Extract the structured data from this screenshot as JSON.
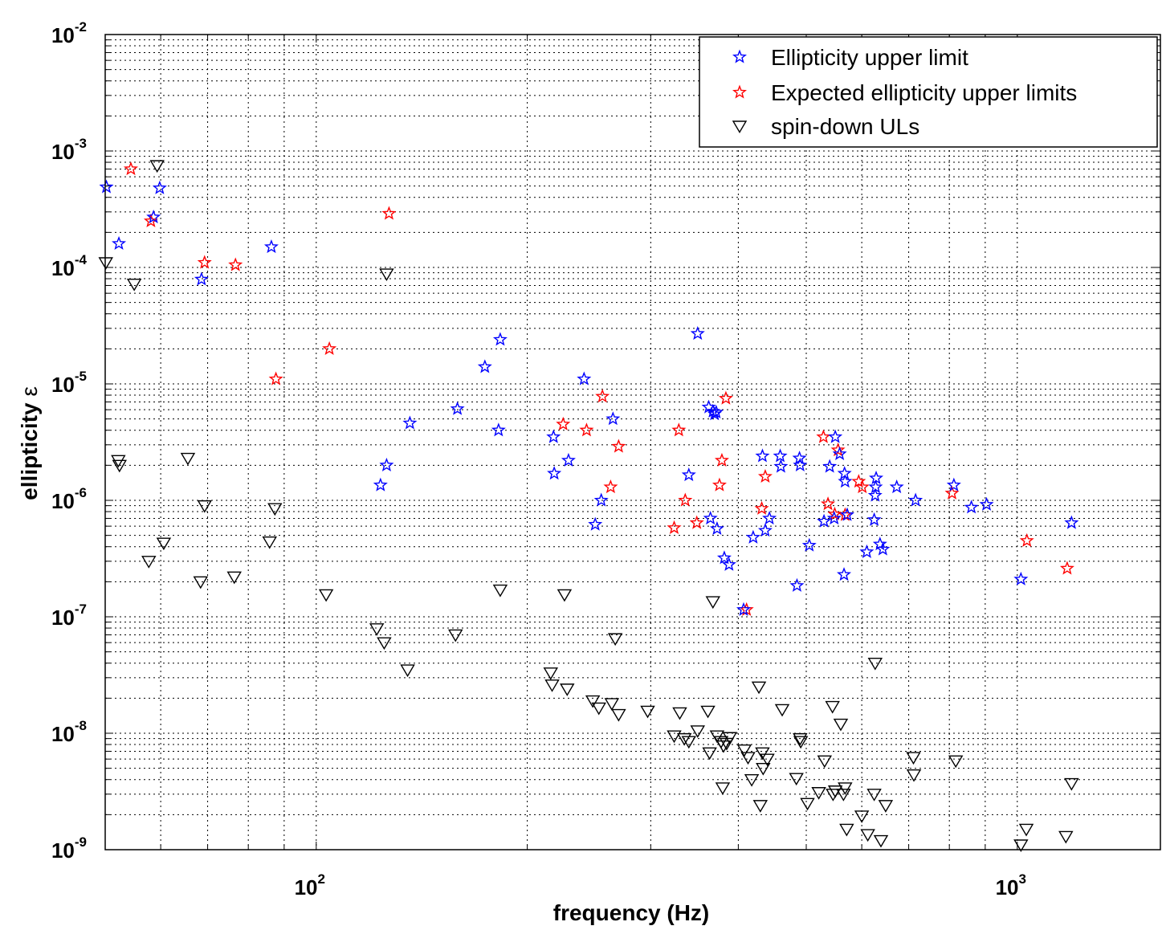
{
  "chart_data": {
    "type": "scatter",
    "xlabel": "frequency (Hz)",
    "ylabel": "ellipticity",
    "ylabel_symbol": "ε",
    "xscale": "log",
    "yscale": "log",
    "xlim": [
      50,
      1600
    ],
    "ylim": [
      1e-09,
      0.01
    ],
    "grid": true,
    "legend_position": "top-right",
    "x_ticks": [
      {
        "value": 100,
        "base": "10",
        "exp": "2"
      },
      {
        "value": 1000,
        "base": "10",
        "exp": "3"
      }
    ],
    "y_ticks": [
      {
        "value": 0.01,
        "base": "10",
        "exp": "-2"
      },
      {
        "value": 0.001,
        "base": "10",
        "exp": "-3"
      },
      {
        "value": 0.0001,
        "base": "10",
        "exp": "-4"
      },
      {
        "value": 1e-05,
        "base": "10",
        "exp": "-5"
      },
      {
        "value": 1e-06,
        "base": "10",
        "exp": "-6"
      },
      {
        "value": 1e-07,
        "base": "10",
        "exp": "-7"
      },
      {
        "value": 1e-08,
        "base": "10",
        "exp": "-8"
      },
      {
        "value": 1e-09,
        "base": "10",
        "exp": "-9"
      }
    ],
    "series": [
      {
        "name": "Ellipticity upper limit",
        "marker": "star",
        "color": "#0000ff",
        "points": [
          [
            50.2,
            0.00049
          ],
          [
            52.3,
            0.00016
          ],
          [
            58.6,
            0.00027
          ],
          [
            59.8,
            0.00048
          ],
          [
            68.6,
            7.9e-05
          ],
          [
            86.3,
            0.00015
          ],
          [
            123.5,
            1.35e-06
          ],
          [
            126,
            2e-06
          ],
          [
            136,
            4.6e-06
          ],
          [
            159,
            6.1e-06
          ],
          [
            174,
            1.4e-05
          ],
          [
            182,
            4e-06
          ],
          [
            183,
            2.4e-05
          ],
          [
            218,
            3.5e-06
          ],
          [
            218.5,
            1.7e-06
          ],
          [
            229,
            2.2e-06
          ],
          [
            241,
            1.1e-05
          ],
          [
            250,
            6.2e-07
          ],
          [
            255,
            1e-06
          ],
          [
            265,
            5e-06
          ],
          [
            340,
            1.65e-06
          ],
          [
            350,
            2.7e-05
          ],
          [
            363,
            6.3e-06
          ],
          [
            365,
            7e-07
          ],
          [
            368,
            5.8e-06
          ],
          [
            370,
            5.5e-06
          ],
          [
            372,
            5.7e-06
          ],
          [
            373,
            5.7e-07
          ],
          [
            382,
            3.2e-07
          ],
          [
            388,
            2.8e-07
          ],
          [
            407,
            1.15e-07
          ],
          [
            420,
            4.8e-07
          ],
          [
            433,
            2.4e-06
          ],
          [
            437,
            5.5e-07
          ],
          [
            443,
            7e-07
          ],
          [
            459,
            2.4e-06
          ],
          [
            460,
            1.95e-06
          ],
          [
            485,
            1.85e-07
          ],
          [
            489,
            2.3e-06
          ],
          [
            490,
            2e-06
          ],
          [
            505,
            4.1e-07
          ],
          [
            530,
            6.6e-07
          ],
          [
            540,
            1.95e-06
          ],
          [
            548,
            7e-07
          ],
          [
            550,
            3.5e-06
          ],
          [
            558,
            2.5e-06
          ],
          [
            566,
            2.3e-07
          ],
          [
            567,
            1.7e-06
          ],
          [
            568,
            1.45e-06
          ],
          [
            572,
            7.5e-07
          ],
          [
            610,
            3.6e-07
          ],
          [
            625,
            6.8e-07
          ],
          [
            627,
            1.1e-06
          ],
          [
            628,
            1.3e-06
          ],
          [
            629,
            1.55e-06
          ],
          [
            637,
            4.2e-07
          ],
          [
            643,
            3.8e-07
          ],
          [
            673,
            1.3e-06
          ],
          [
            716,
            1e-06
          ],
          [
            812,
            1.35e-06
          ],
          [
            860,
            8.7e-07
          ],
          [
            904,
            9.2e-07
          ],
          [
            1012,
            2.1e-07
          ],
          [
            1195,
            6.4e-07
          ]
        ]
      },
      {
        "name": "Expected ellipticity upper limits",
        "marker": "star",
        "color": "#ff0000",
        "points": [
          [
            54.4,
            0.0007
          ],
          [
            58.1,
            0.00025
          ],
          [
            69.3,
            0.00011
          ],
          [
            76.7,
            0.000105
          ],
          [
            87.6,
            1.1e-05
          ],
          [
            104.4,
            2e-05
          ],
          [
            127,
            0.00029
          ],
          [
            225,
            4.5e-06
          ],
          [
            243,
            4e-06
          ],
          [
            256,
            7.8e-06
          ],
          [
            263,
            1.3e-06
          ],
          [
            270,
            2.9e-06
          ],
          [
            324,
            5.8e-07
          ],
          [
            329,
            4e-06
          ],
          [
            336,
            1e-06
          ],
          [
            349,
            6.4e-07
          ],
          [
            376,
            1.35e-06
          ],
          [
            379,
            2.2e-06
          ],
          [
            384,
            7.5e-06
          ],
          [
            411,
            1.15e-07
          ],
          [
            432,
            8.5e-07
          ],
          [
            437,
            1.6e-06
          ],
          [
            529,
            3.5e-06
          ],
          [
            537,
            9.3e-07
          ],
          [
            549,
            7.6e-07
          ],
          [
            555,
            2.7e-06
          ],
          [
            568,
            7.5e-07
          ],
          [
            594,
            1.45e-06
          ],
          [
            601,
            1.3e-06
          ],
          [
            807,
            1.15e-06
          ],
          [
            1032,
            4.5e-07
          ],
          [
            1178,
            2.6e-07
          ]
        ]
      },
      {
        "name": "spin-down ULs",
        "marker": "triangle-down",
        "color": "#000000",
        "points": [
          [
            50.1,
            0.00011
          ],
          [
            52.2,
            2.2e-06
          ],
          [
            52.4,
            2e-06
          ],
          [
            55,
            7.2e-05
          ],
          [
            57.7,
            3e-07
          ],
          [
            59.3,
            0.00075
          ],
          [
            60.6,
            4.3e-07
          ],
          [
            65.6,
            2.3e-06
          ],
          [
            68.4,
            2e-07
          ],
          [
            69.3,
            9e-07
          ],
          [
            76.4,
            2.2e-07
          ],
          [
            85.8,
            4.4e-07
          ],
          [
            87.3,
            8.5e-07
          ],
          [
            103.3,
            1.55e-07
          ],
          [
            122,
            7.9e-08
          ],
          [
            125,
            6e-08
          ],
          [
            126,
            8.8e-05
          ],
          [
            135,
            3.5e-08
          ],
          [
            158,
            7e-08
          ],
          [
            183,
            1.7e-07
          ],
          [
            216,
            3.3e-08
          ],
          [
            217,
            2.6e-08
          ],
          [
            226,
            1.55e-07
          ],
          [
            228,
            2.4e-08
          ],
          [
            248,
            1.9e-08
          ],
          [
            253,
            1.65e-08
          ],
          [
            264,
            1.8e-08
          ],
          [
            267,
            6.5e-08
          ],
          [
            270,
            1.45e-08
          ],
          [
            297,
            1.55e-08
          ],
          [
            324,
            9.5e-09
          ],
          [
            330,
            1.5e-08
          ],
          [
            335,
            9e-09
          ],
          [
            340,
            8.5e-09
          ],
          [
            350,
            1.05e-08
          ],
          [
            362,
            1.55e-08
          ],
          [
            364,
            6.8e-09
          ],
          [
            368,
            1.35e-07
          ],
          [
            373,
            9.5e-09
          ],
          [
            378,
            8.5e-09
          ],
          [
            380,
            3.4e-09
          ],
          [
            381,
            7.8e-09
          ],
          [
            385,
            8.2e-09
          ],
          [
            389,
            9.2e-09
          ],
          [
            408,
            7.2e-09
          ],
          [
            413,
            6.2e-09
          ],
          [
            418,
            4e-09
          ],
          [
            428,
            2.5e-08
          ],
          [
            430,
            2.4e-09
          ],
          [
            433,
            6.8e-09
          ],
          [
            434,
            5e-09
          ],
          [
            440,
            6e-09
          ],
          [
            462,
            1.6e-08
          ],
          [
            484,
            4.1e-09
          ],
          [
            490,
            9e-09
          ],
          [
            491,
            8.5e-09
          ],
          [
            502,
            2.5e-09
          ],
          [
            521,
            3.1e-09
          ],
          [
            531,
            5.8e-09
          ],
          [
            545,
            1.7e-08
          ],
          [
            546,
            3e-09
          ],
          [
            550,
            3.2e-09
          ],
          [
            560,
            1.2e-08
          ],
          [
            565,
            3e-09
          ],
          [
            568,
            3.4e-09
          ],
          [
            571,
            1.5e-09
          ],
          [
            600,
            1.95e-09
          ],
          [
            612,
            1.35e-09
          ],
          [
            625,
            3e-09
          ],
          [
            627,
            4e-08
          ],
          [
            639,
            1.2e-09
          ],
          [
            649,
            2.4e-09
          ],
          [
            711,
            6.2e-09
          ],
          [
            712,
            4.4e-09
          ],
          [
            817,
            5.8e-09
          ],
          [
            1012,
            1.1e-09
          ],
          [
            1030,
            1.5e-09
          ],
          [
            1173,
            1.3e-09
          ],
          [
            1195,
            3.7e-09
          ]
        ]
      }
    ]
  }
}
